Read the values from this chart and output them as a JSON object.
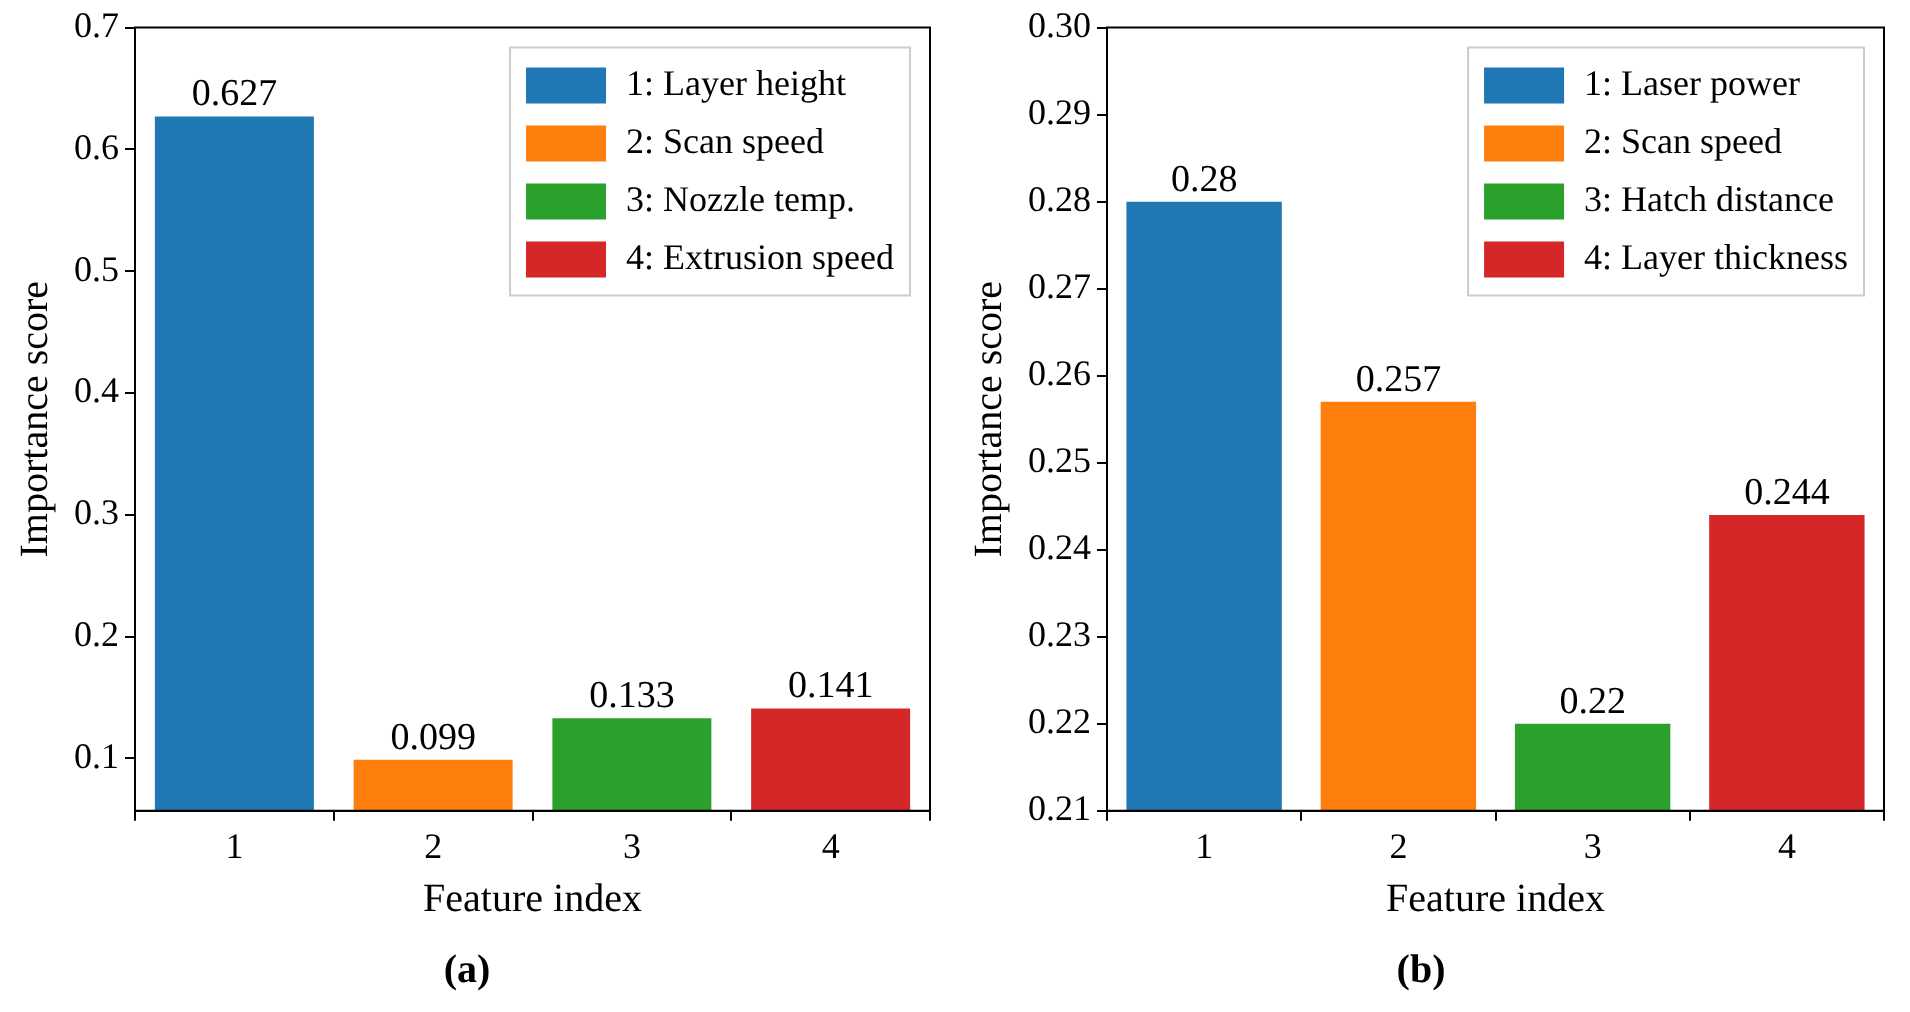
{
  "chart_data": [
    {
      "type": "bar",
      "title": "(a)",
      "xlabel": "Feature index",
      "ylabel": "Importance score",
      "categories": [
        "1",
        "2",
        "3",
        "4"
      ],
      "series": [
        {
          "name": "1: Layer height",
          "color": "#1f77b4",
          "values": [
            0.627,
            null,
            null,
            null
          ]
        },
        {
          "name": "2: Scan speed",
          "color": "#ff7f0e",
          "values": [
            null,
            0.099,
            null,
            null
          ]
        },
        {
          "name": "3: Nozzle temp.",
          "color": "#2ca02c",
          "values": [
            null,
            null,
            0.133,
            null
          ]
        },
        {
          "name": "4: Extrusion speed",
          "color": "#d62728",
          "values": [
            null,
            null,
            null,
            0.141
          ]
        }
      ],
      "ylim": [
        0.057,
        0.7
      ],
      "yticks": [
        0.1,
        0.2,
        0.3,
        0.4,
        0.5,
        0.6,
        0.7
      ],
      "legend": "top right",
      "data_labels": true
    },
    {
      "type": "bar",
      "title": "(b)",
      "xlabel": "Feature index",
      "ylabel": "Importance score",
      "categories": [
        "1",
        "2",
        "3",
        "4"
      ],
      "series": [
        {
          "name": "1: Laser power",
          "color": "#1f77b4",
          "values": [
            0.28,
            null,
            null,
            null
          ]
        },
        {
          "name": "2: Scan speed",
          "color": "#ff7f0e",
          "values": [
            null,
            0.257,
            null,
            null
          ]
        },
        {
          "name": "3: Hatch distance",
          "color": "#2ca02c",
          "values": [
            null,
            null,
            0.22,
            null
          ]
        },
        {
          "name": "4: Layer thickness",
          "color": "#d62728",
          "values": [
            null,
            null,
            null,
            0.244
          ]
        }
      ],
      "ylim": [
        0.21,
        0.3
      ],
      "yticks": [
        {
          "value": 0.21,
          "label": "0.21"
        },
        {
          "value": 0.22,
          "label": "0.22"
        },
        {
          "value": 0.23,
          "label": "0.23"
        },
        {
          "value": 0.24,
          "label": "0.24"
        },
        {
          "value": 0.25,
          "label": "0.25"
        },
        {
          "value": 0.26,
          "label": "0.26"
        },
        {
          "value": 0.27,
          "label": "0.27"
        },
        {
          "value": 0.28,
          "label": "0.28"
        },
        {
          "value": 0.29,
          "label": "0.29"
        },
        {
          "value": 0.3,
          "label": "0.30"
        }
      ],
      "legend": "top right",
      "data_labels": true
    }
  ]
}
